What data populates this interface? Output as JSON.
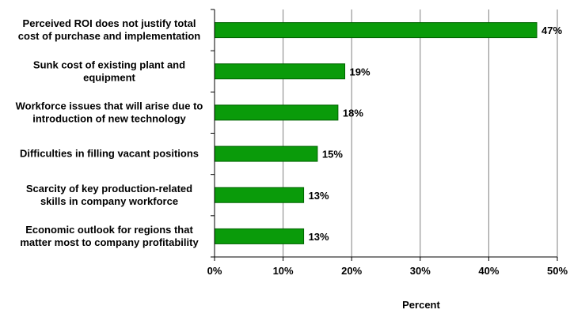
{
  "chart_data": {
    "type": "bar",
    "orientation": "horizontal",
    "categories": [
      [
        "Perceived ROI does not justify total",
        "cost of purchase and implementation"
      ],
      [
        "Sunk cost of existing plant and",
        "equipment"
      ],
      [
        "Workforce issues that will arise due to",
        "introduction of new technology"
      ],
      [
        "Difficulties in filling vacant positions"
      ],
      [
        "Scarcity of key production-related",
        "skills in company workforce"
      ],
      [
        "Economic outlook for regions that",
        "matter most to company profitability"
      ]
    ],
    "values": [
      47,
      19,
      18,
      15,
      13,
      13
    ],
    "data_labels": [
      "47%",
      "19%",
      "18%",
      "15%",
      "13%",
      "13%"
    ],
    "xlim": [
      0,
      50
    ],
    "x_ticks": [
      0,
      10,
      20,
      30,
      40,
      50
    ],
    "x_tick_labels": [
      "0%",
      "10%",
      "20%",
      "30%",
      "40%",
      "50%"
    ],
    "xlabel": "Percent",
    "ylabel": "",
    "title": "",
    "grid": "vertical",
    "bar_color": "#0a9b0a",
    "bar_edge_color": "#006400"
  }
}
